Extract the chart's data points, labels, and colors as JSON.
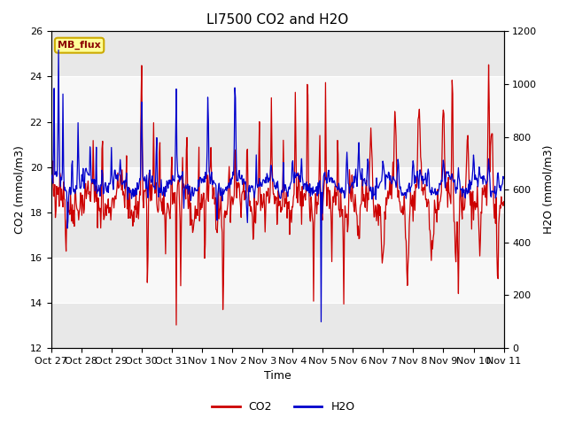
{
  "title": "LI7500 CO2 and H2O",
  "xlabel": "Time",
  "ylabel_left": "CO2 (mmol/m3)",
  "ylabel_right": "H2O (mmol/m3)",
  "ylim_left": [
    12,
    26
  ],
  "ylim_right": [
    0,
    1200
  ],
  "yticks_left": [
    12,
    14,
    16,
    18,
    20,
    22,
    24,
    26
  ],
  "yticks_right": [
    0,
    200,
    400,
    600,
    800,
    1000,
    1200
  ],
  "xtick_labels": [
    "Oct 27",
    "Oct 28",
    "Oct 29",
    "Oct 30",
    "Oct 31",
    "Nov 1",
    "Nov 2",
    "Nov 3",
    "Nov 4",
    "Nov 5",
    "Nov 6",
    "Nov 7",
    "Nov 8",
    "Nov 9",
    "Nov 10",
    "Nov 11"
  ],
  "co2_color": "#cc0000",
  "h2o_color": "#0000cc",
  "background_color": "#ffffff",
  "plot_bg_color": "#f0f0f0",
  "band_color_light": "#e8e8e8",
  "band_color_white": "#f8f8f8",
  "annotation_text": "MB_flux",
  "annotation_bg": "#ffff99",
  "annotation_border": "#ccaa00",
  "legend_co2": "CO2",
  "legend_h2o": "H2O",
  "title_fontsize": 11,
  "axis_fontsize": 9,
  "tick_fontsize": 8
}
